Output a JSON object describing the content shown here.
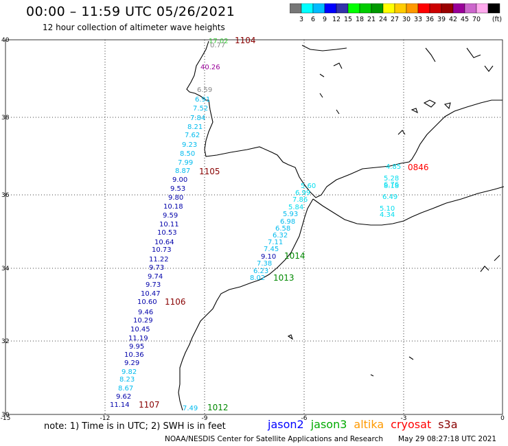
{
  "header": {
    "title": "00:00 – 11:59 UTC 05/26/2021",
    "subtitle": "12 hour collection of altimeter wave heights"
  },
  "legend": {
    "colors": [
      "#777777",
      "#00ffff",
      "#00bbff",
      "#0000ff",
      "#3333aa",
      "#00ff00",
      "#00cc00",
      "#009900",
      "#ffff00",
      "#ffcc00",
      "#ff9900",
      "#ff0000",
      "#cc0000",
      "#990000",
      "#990099",
      "#cc66cc",
      "#ffaaee",
      "#000000"
    ],
    "labels": [
      "3",
      "6",
      "9",
      "12",
      "15",
      "18",
      "21",
      "24",
      "27",
      "30",
      "33",
      "36",
      "39",
      "42",
      "45",
      "70"
    ],
    "unit": "(ft)"
  },
  "axes": {
    "lat_labels": [
      "40",
      "38",
      "36",
      "34",
      "32",
      "30"
    ],
    "lon_labels": [
      "-15",
      "-12",
      "-9",
      "-6",
      "-3",
      "0"
    ]
  },
  "passes": [
    {
      "label": "1104",
      "color": "#880000"
    },
    {
      "label": "1105",
      "color": "#880000"
    },
    {
      "label": "1106",
      "color": "#880000"
    },
    {
      "label": "1107",
      "color": "#880000"
    },
    {
      "label": "1012",
      "color": "#008800"
    },
    {
      "label": "1013",
      "color": "#008800"
    },
    {
      "label": "1014",
      "color": "#008800"
    },
    {
      "label": "0846",
      "color": "#ff0000"
    }
  ],
  "swh_values": {
    "track_1104_1107": [
      "17.02",
      "0.77",
      "40.26",
      "6.59",
      "6.91",
      "7.52",
      "7.84",
      "8.21",
      "7.62",
      "9.23",
      "8.50",
      "7.99",
      "8.87",
      "9.00",
      "9.53",
      "9.80",
      "10.18",
      "9.59",
      "10.11",
      "10.53",
      "10.64",
      "10.73",
      "11.22",
      "9.73",
      "9.74",
      "9.73",
      "10.47",
      "10.60",
      "9.46",
      "10.29",
      "10.45",
      "11.19",
      "9.95",
      "10.36",
      "9.29",
      "9.82",
      "8.23",
      "8.67",
      "9.62",
      "11.14"
    ],
    "track_1012_1014": [
      "7.49",
      "8.02",
      "6.23",
      "7.38",
      "9.10",
      "7.45",
      "7.11",
      "6.32",
      "6.58",
      "6.98",
      "5.93",
      "5.84",
      "7.86",
      "6.99",
      "5.60"
    ],
    "track_0846": [
      "4.85",
      "5.28",
      "6.76",
      "8.18",
      "6.49",
      "5.10",
      "4.34"
    ]
  },
  "footer": {
    "note": "note:  1) Time is in UTC;  2) SWH is in feet",
    "satellites": [
      {
        "name": "jason2",
        "color": "#0000ff"
      },
      {
        "name": "jason3",
        "color": "#00aa00"
      },
      {
        "name": "altika",
        "color": "#ff9900"
      },
      {
        "name": "cryosat",
        "color": "#ff0000"
      },
      {
        "name": "s3a",
        "color": "#880000"
      }
    ],
    "credit": "NOAA/NESDIS Center for Satellite Applications and Research",
    "generated": "May 29 08:27:18 UTC 2021"
  }
}
